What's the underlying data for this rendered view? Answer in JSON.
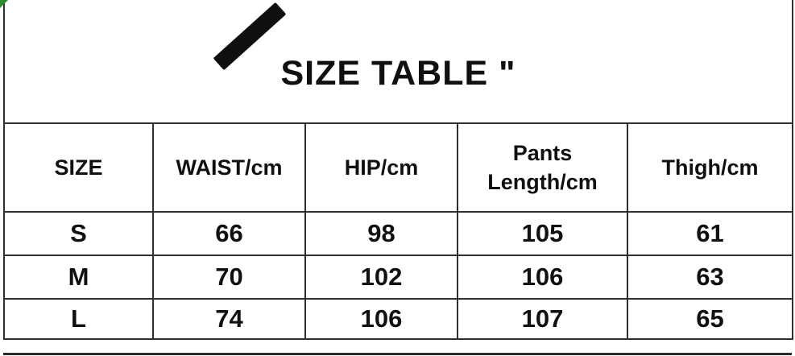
{
  "page": {
    "background_color": "#ffffff",
    "border_color": "#2f2f2f",
    "text_color": "#101010",
    "corner_accent_color": "#2e8b2e"
  },
  "header": {
    "title": "SIZE TABLE \"",
    "icon": "pen-stroke"
  },
  "size_table": {
    "columns": [
      "SIZE",
      "WAIST/cm",
      "HIP/cm",
      "Pants\nLength/cm",
      "Thigh/cm"
    ],
    "rows": [
      [
        "S",
        "66",
        "98",
        "105",
        "61"
      ],
      [
        "M",
        "70",
        "102",
        "106",
        "63"
      ],
      [
        "L",
        "74",
        "106",
        "107",
        "65"
      ]
    ]
  }
}
